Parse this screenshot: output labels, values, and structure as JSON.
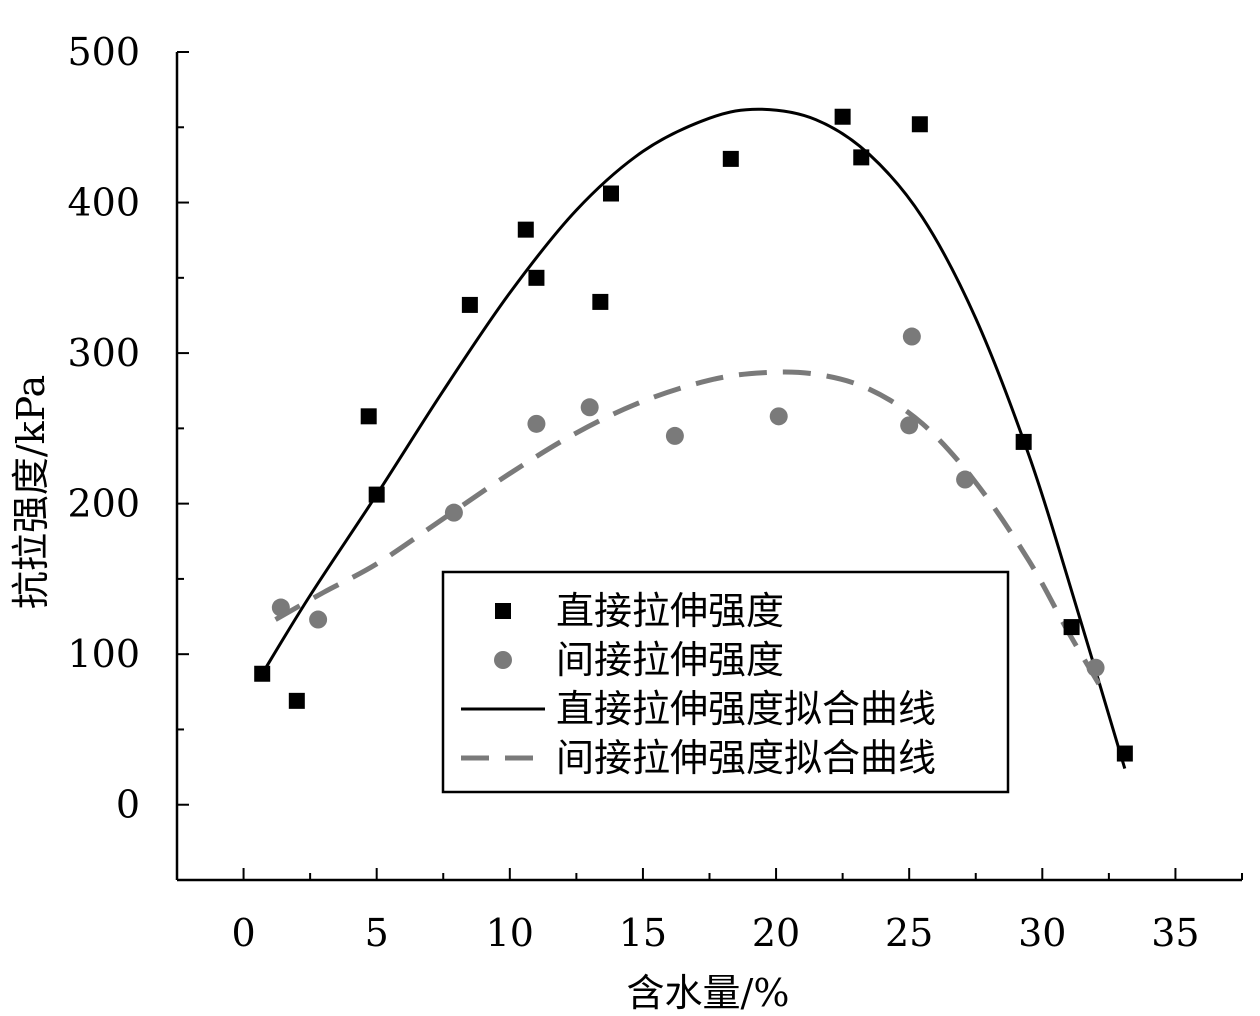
{
  "chart_data": {
    "type": "scatter",
    "xlabel": "含水量/%",
    "ylabel": "抗拉强度/kPa",
    "xlim": [
      -2.5,
      37.5
    ],
    "ylim": [
      -50,
      500
    ],
    "x_ticks": [
      0,
      5,
      10,
      15,
      20,
      25,
      30,
      35
    ],
    "y_ticks": [
      0,
      100,
      200,
      300,
      400,
      500
    ],
    "grid": false,
    "legend_position": "bottom-center",
    "series": [
      {
        "name": "直接拉伸强度",
        "kind": "scatter",
        "marker": "square",
        "color": "#000000",
        "points": [
          [
            0.7,
            87
          ],
          [
            2.0,
            69
          ],
          [
            4.7,
            258
          ],
          [
            5.0,
            206
          ],
          [
            8.5,
            332
          ],
          [
            10.6,
            382
          ],
          [
            11.0,
            350
          ],
          [
            13.4,
            334
          ],
          [
            13.8,
            406
          ],
          [
            18.3,
            429
          ],
          [
            22.5,
            457
          ],
          [
            23.2,
            430
          ],
          [
            25.4,
            452
          ],
          [
            29.3,
            241
          ],
          [
            31.1,
            118
          ],
          [
            33.1,
            34
          ]
        ]
      },
      {
        "name": "间接拉伸强度",
        "kind": "scatter",
        "marker": "circle",
        "color": "#7a7a7a",
        "points": [
          [
            1.4,
            131
          ],
          [
            2.8,
            123
          ],
          [
            7.9,
            194
          ],
          [
            11.0,
            253
          ],
          [
            13.0,
            264
          ],
          [
            16.2,
            245
          ],
          [
            20.1,
            258
          ],
          [
            25.0,
            252
          ],
          [
            25.1,
            311
          ],
          [
            27.1,
            216
          ],
          [
            32.0,
            91
          ]
        ]
      },
      {
        "name": "直接拉伸强度拟合曲线",
        "kind": "line",
        "style": "solid",
        "color": "#000000",
        "points": [
          [
            0.7,
            87
          ],
          [
            2.5,
            139
          ],
          [
            5.0,
            206
          ],
          [
            7.5,
            275
          ],
          [
            10.0,
            340
          ],
          [
            12.5,
            395
          ],
          [
            15.0,
            434
          ],
          [
            17.5,
            456
          ],
          [
            19.4,
            462
          ],
          [
            21.5,
            455
          ],
          [
            23.5,
            432
          ],
          [
            25.5,
            390
          ],
          [
            27.5,
            323
          ],
          [
            29.5,
            232
          ],
          [
            31.0,
            148
          ],
          [
            33.1,
            24
          ]
        ]
      },
      {
        "name": "间接拉伸强度拟合曲线",
        "kind": "line",
        "style": "dashed",
        "color": "#7a7a7a",
        "points": [
          [
            1.2,
            123
          ],
          [
            3.0,
            141
          ],
          [
            5.0,
            160
          ],
          [
            7.5,
            190
          ],
          [
            10.0,
            220
          ],
          [
            12.5,
            247
          ],
          [
            15.0,
            268
          ],
          [
            17.5,
            282
          ],
          [
            19.5,
            287
          ],
          [
            21.5,
            286
          ],
          [
            23.5,
            276
          ],
          [
            25.5,
            253
          ],
          [
            27.5,
            214
          ],
          [
            29.5,
            162
          ],
          [
            31.0,
            114
          ],
          [
            32.3,
            75
          ]
        ]
      }
    ]
  }
}
